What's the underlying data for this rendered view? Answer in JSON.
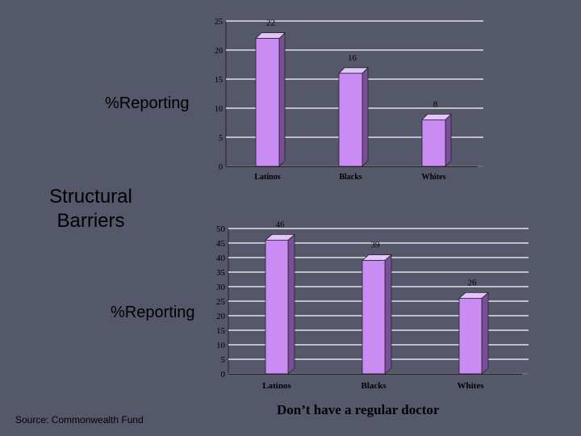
{
  "slide": {
    "title": "Structural Barriers",
    "source": "Source: Commonwealth Fund",
    "caption": "Don’t have a regular doctor"
  },
  "colors": {
    "background": "#55586a",
    "bar_front": "#c98cf3",
    "bar_side": "#7a4d99",
    "bar_top": "#e2c4fa",
    "grid": "#ffffff",
    "text": "#000000"
  },
  "chart_data": [
    {
      "type": "bar",
      "categories": [
        "Latinos",
        "Blacks",
        "Whites"
      ],
      "values": [
        22,
        16,
        8
      ],
      "ylabel": "%Reporting",
      "ylim": [
        0,
        25
      ],
      "yticks": [
        0,
        5,
        10,
        15,
        20,
        25
      ],
      "grid": true,
      "data_labels": true
    },
    {
      "type": "bar",
      "categories": [
        "Latinos",
        "Blacks",
        "Whites"
      ],
      "values": [
        46,
        39,
        26
      ],
      "ylabel": "%Reporting",
      "ylim": [
        0,
        50
      ],
      "yticks": [
        0,
        5,
        10,
        15,
        20,
        25,
        30,
        35,
        40,
        45,
        50
      ],
      "grid": true,
      "data_labels": true
    }
  ]
}
